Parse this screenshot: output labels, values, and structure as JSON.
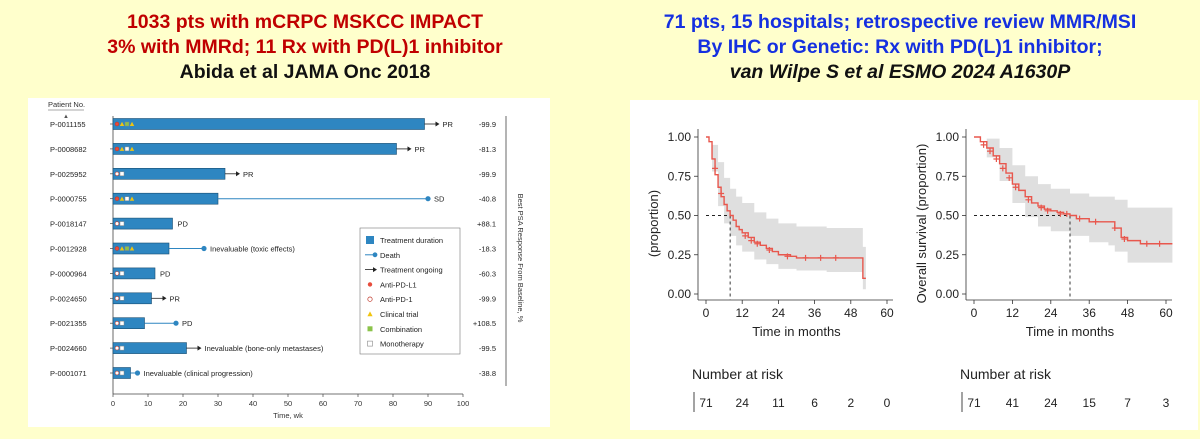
{
  "left_header": {
    "line1": "1033 pts with mCRPC MSKCC IMPACT",
    "line2": "3% with MMRd; 11 Rx with PD(L)1 inhibitor",
    "line3": "Abida et al JAMA Onc 2018"
  },
  "right_header": {
    "line1": "71 pts, 15 hospitals; retrospective review MMR/MSI",
    "line2": "By IHC or Genetic: Rx with PD(L)1 inhibitor;",
    "line3": "van Wilpe S et al ESMO 2024 A1630P"
  },
  "colors": {
    "bar": "#2e86c1",
    "km": "#e8574d",
    "band": "#dcdcdc",
    "title_red": "#c00000",
    "title_blue": "#1530e0"
  },
  "chart_data": [
    {
      "type": "bar",
      "orientation": "horizontal",
      "subtype": "swimmer",
      "row_header": "Patient No.",
      "xlabel": "Time, wk",
      "xlim": [
        0,
        100
      ],
      "xticks": [
        0,
        10,
        20,
        30,
        40,
        50,
        60,
        70,
        80,
        90,
        100
      ],
      "right_axis_label": "Best PSA Response From Baseline, %",
      "legend": {
        "position": "right",
        "items": [
          "Treatment duration",
          "Death",
          "Treatment ongoing",
          "Anti-PD-L1",
          "Anti-PD-1",
          "Clinical trial",
          "Combination",
          "Monotherapy"
        ]
      },
      "patients": [
        {
          "id": "P-0011155",
          "duration": 89,
          "ongoing": true,
          "death": null,
          "label": "PR",
          "psa": "-99.9",
          "drug": "Anti-PD-L1",
          "trial": true,
          "regimen": "Combination"
        },
        {
          "id": "P-0008682",
          "duration": 81,
          "ongoing": true,
          "death": null,
          "label": "PR",
          "psa": "-81.3",
          "drug": "Anti-PD-L1",
          "trial": true,
          "regimen": "Monotherapy"
        },
        {
          "id": "P-0025952",
          "duration": 32,
          "ongoing": true,
          "death": null,
          "label": "PR",
          "psa": "-99.9",
          "drug": "Anti-PD-1",
          "trial": false,
          "regimen": "Monotherapy"
        },
        {
          "id": "P-0000755",
          "duration": 30,
          "ongoing": false,
          "death": 90,
          "label": "SD",
          "psa": "-40.8",
          "drug": "Anti-PD-L1",
          "trial": true,
          "regimen": "Monotherapy"
        },
        {
          "id": "P-0018147",
          "duration": 17,
          "ongoing": false,
          "death": null,
          "label": "PD",
          "psa": "+88.1",
          "drug": "Anti-PD-1",
          "trial": false,
          "regimen": "Monotherapy"
        },
        {
          "id": "P-0012928",
          "duration": 16,
          "ongoing": false,
          "death": 26,
          "label": "Inevaluable (toxic effects)",
          "psa": "-18.3",
          "drug": "Anti-PD-L1",
          "trial": true,
          "regimen": "Combination"
        },
        {
          "id": "P-0000964",
          "duration": 12,
          "ongoing": false,
          "death": null,
          "label": "PD",
          "psa": "-60.3",
          "drug": "Anti-PD-1",
          "trial": false,
          "regimen": "Monotherapy"
        },
        {
          "id": "P-0024650",
          "duration": 11,
          "ongoing": true,
          "death": null,
          "label": "PR",
          "psa": "-99.9",
          "drug": "Anti-PD-1",
          "trial": false,
          "regimen": "Monotherapy"
        },
        {
          "id": "P-0021355",
          "duration": 9,
          "ongoing": false,
          "death": 18,
          "label": "PD",
          "psa": "+108.5",
          "drug": "Anti-PD-1",
          "trial": false,
          "regimen": "Monotherapy"
        },
        {
          "id": "P-0024660",
          "duration": 21,
          "ongoing": true,
          "death": null,
          "label": "Inevaluable (bone-only metastases)",
          "psa": "-99.5",
          "drug": "Anti-PD-1",
          "trial": false,
          "regimen": "Monotherapy"
        },
        {
          "id": "P-0001071",
          "duration": 5,
          "ongoing": false,
          "death": 7,
          "label": "Inevaluable (clinical progression)",
          "psa": "-38.8",
          "drug": "Anti-PD-1",
          "trial": false,
          "regimen": "Monotherapy"
        }
      ]
    },
    {
      "type": "line",
      "subtype": "kaplan-meier",
      "xlabel": "Time in months",
      "ylabel": "(proportion)",
      "xlim": [
        0,
        60
      ],
      "ylim": [
        0,
        1
      ],
      "xticks": [
        0,
        12,
        24,
        36,
        48,
        60
      ],
      "yticks": [
        "0.00",
        "0.25",
        "0.50",
        "0.75",
        "1.00"
      ],
      "median": 8,
      "curve": [
        [
          0,
          1.0
        ],
        [
          1,
          0.97
        ],
        [
          2,
          0.86
        ],
        [
          3,
          0.76
        ],
        [
          4,
          0.68
        ],
        [
          5,
          0.62
        ],
        [
          6,
          0.57
        ],
        [
          7,
          0.53
        ],
        [
          8,
          0.5
        ],
        [
          9,
          0.47
        ],
        [
          10,
          0.43
        ],
        [
          11,
          0.41
        ],
        [
          12,
          0.39
        ],
        [
          14,
          0.36
        ],
        [
          16,
          0.33
        ],
        [
          18,
          0.31
        ],
        [
          20,
          0.29
        ],
        [
          22,
          0.27
        ],
        [
          24,
          0.25
        ],
        [
          28,
          0.24
        ],
        [
          30,
          0.23
        ],
        [
          36,
          0.23
        ],
        [
          48,
          0.23
        ],
        [
          52,
          0.23
        ],
        [
          52,
          0.1
        ],
        [
          53,
          0.1
        ]
      ],
      "ci_upper": [
        [
          0,
          1.0
        ],
        [
          2,
          0.95
        ],
        [
          4,
          0.84
        ],
        [
          6,
          0.74
        ],
        [
          8,
          0.67
        ],
        [
          10,
          0.62
        ],
        [
          12,
          0.58
        ],
        [
          16,
          0.52
        ],
        [
          20,
          0.48
        ],
        [
          24,
          0.45
        ],
        [
          30,
          0.43
        ],
        [
          40,
          0.42
        ],
        [
          52,
          0.42
        ],
        [
          52,
          0.3
        ],
        [
          53,
          0.3
        ]
      ],
      "ci_lower": [
        [
          0,
          1.0
        ],
        [
          2,
          0.78
        ],
        [
          4,
          0.56
        ],
        [
          6,
          0.45
        ],
        [
          8,
          0.37
        ],
        [
          10,
          0.31
        ],
        [
          12,
          0.27
        ],
        [
          16,
          0.22
        ],
        [
          20,
          0.19
        ],
        [
          24,
          0.16
        ],
        [
          30,
          0.15
        ],
        [
          40,
          0.14
        ],
        [
          52,
          0.14
        ],
        [
          52,
          0.03
        ],
        [
          53,
          0.03
        ]
      ],
      "censored": [
        [
          3,
          0.8
        ],
        [
          5,
          0.64
        ],
        [
          13,
          0.37
        ],
        [
          15,
          0.34
        ],
        [
          17,
          0.32
        ],
        [
          21,
          0.28
        ],
        [
          27,
          0.24
        ],
        [
          33,
          0.23
        ],
        [
          38,
          0.23
        ],
        [
          43,
          0.23
        ]
      ],
      "risk_table": {
        "title": "Number at risk",
        "values": [
          "71",
          "24",
          "11",
          "6",
          "2",
          "0"
        ]
      }
    },
    {
      "type": "line",
      "subtype": "kaplan-meier",
      "xlabel": "Time in months",
      "ylabel": "Overall survival (proportion)",
      "xlim": [
        0,
        60
      ],
      "ylim": [
        0,
        1
      ],
      "xticks": [
        0,
        12,
        24,
        36,
        48,
        60
      ],
      "yticks": [
        "0.00",
        "0.25",
        "0.50",
        "0.75",
        "1.00"
      ],
      "median": 30,
      "curve": [
        [
          0,
          1.0
        ],
        [
          2,
          0.97
        ],
        [
          4,
          0.93
        ],
        [
          6,
          0.88
        ],
        [
          8,
          0.83
        ],
        [
          10,
          0.77
        ],
        [
          12,
          0.7
        ],
        [
          14,
          0.66
        ],
        [
          16,
          0.62
        ],
        [
          18,
          0.58
        ],
        [
          20,
          0.56
        ],
        [
          22,
          0.54
        ],
        [
          24,
          0.53
        ],
        [
          26,
          0.52
        ],
        [
          28,
          0.51
        ],
        [
          30,
          0.5
        ],
        [
          32,
          0.48
        ],
        [
          36,
          0.46
        ],
        [
          42,
          0.46
        ],
        [
          44,
          0.42
        ],
        [
          46,
          0.36
        ],
        [
          48,
          0.34
        ],
        [
          52,
          0.32
        ],
        [
          62,
          0.32
        ]
      ],
      "ci_upper": [
        [
          0,
          1.0
        ],
        [
          4,
          0.99
        ],
        [
          8,
          0.93
        ],
        [
          12,
          0.82
        ],
        [
          16,
          0.75
        ],
        [
          20,
          0.7
        ],
        [
          24,
          0.67
        ],
        [
          30,
          0.64
        ],
        [
          36,
          0.62
        ],
        [
          42,
          0.62
        ],
        [
          44,
          0.6
        ],
        [
          48,
          0.55
        ],
        [
          62,
          0.55
        ]
      ],
      "ci_lower": [
        [
          0,
          1.0
        ],
        [
          4,
          0.87
        ],
        [
          8,
          0.72
        ],
        [
          12,
          0.58
        ],
        [
          16,
          0.49
        ],
        [
          20,
          0.43
        ],
        [
          24,
          0.4
        ],
        [
          30,
          0.37
        ],
        [
          36,
          0.33
        ],
        [
          42,
          0.31
        ],
        [
          44,
          0.27
        ],
        [
          48,
          0.2
        ],
        [
          62,
          0.18
        ]
      ],
      "censored": [
        [
          3,
          0.95
        ],
        [
          5,
          0.91
        ],
        [
          7,
          0.86
        ],
        [
          9,
          0.8
        ],
        [
          11,
          0.74
        ],
        [
          13,
          0.68
        ],
        [
          17,
          0.6
        ],
        [
          21,
          0.55
        ],
        [
          23,
          0.53
        ],
        [
          27,
          0.51
        ],
        [
          29,
          0.51
        ],
        [
          33,
          0.48
        ],
        [
          38,
          0.46
        ],
        [
          44,
          0.42
        ],
        [
          47,
          0.35
        ],
        [
          54,
          0.32
        ],
        [
          58,
          0.32
        ]
      ],
      "risk_table": {
        "title": "Number at risk",
        "values": [
          "71",
          "41",
          "24",
          "15",
          "7",
          "3"
        ]
      }
    }
  ]
}
